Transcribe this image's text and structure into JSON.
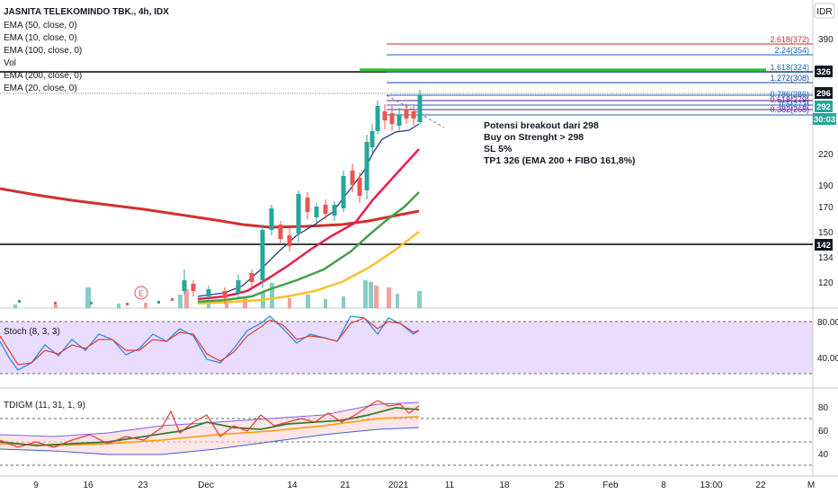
{
  "header": {
    "title": "JASNITA TELEKOMINDO TBK., 4h, IDX",
    "indicators": [
      "EMA (50, close, 0)",
      "EMA (10, close, 0)",
      "EMA (100, close, 0)",
      "Vol",
      "EMA (200, close, 0)",
      "EMA (20, close, 0)"
    ],
    "currency": "IDR"
  },
  "annotation": [
    "Potensi breakout dari 298",
    "Buy on Strenght > 298",
    "SL 5%",
    "TP1 326 (EMA 200 + FIBO 161,8%)"
  ],
  "fib_labels": [
    "2.618(372)",
    "2.24(354)",
    "1.618(324)",
    "1.272(308)",
    "0.786(286)",
    "0.618(279)",
    "0.5(273)",
    "0.382(268)"
  ],
  "price_tags": [
    "326",
    "296",
    "292",
    "30:03",
    "142"
  ],
  "lower": {
    "stoch_title": "Stoch (8, 3, 3)",
    "tdigm_title": "TDIGM (11, 31, 1, 9)"
  },
  "colors": {
    "up": "#26a69a",
    "down": "#ef5350",
    "ema10": "#1e3a8a",
    "ema20": "#e91e4f",
    "ema50": "#43a047",
    "ema100": "#fbc02d",
    "ema200": "#d32f2f",
    "hline": "#000000",
    "target": "#2fbf2f",
    "stoch_bg": "#e6d6ff"
  },
  "chart_data": {
    "type": "candlestick",
    "price_axis": {
      "ticks": [
        390,
        326,
        296,
        292,
        220,
        190,
        170,
        150,
        142,
        134,
        120
      ]
    },
    "time_axis": [
      "9",
      "16",
      "23",
      "Dec",
      "14",
      "21",
      "2021",
      "11",
      "18",
      "25",
      "Feb",
      "8",
      "13:00",
      "22",
      "M"
    ],
    "horizontal_levels": [
      326,
      142
    ],
    "stoch": {
      "axis": [
        "80.00",
        "40.00"
      ],
      "levels": [
        80,
        20
      ]
    },
    "tdigm": {
      "axis": [
        "80",
        "60",
        "40"
      ],
      "levels": [
        68,
        50,
        32
      ]
    }
  }
}
